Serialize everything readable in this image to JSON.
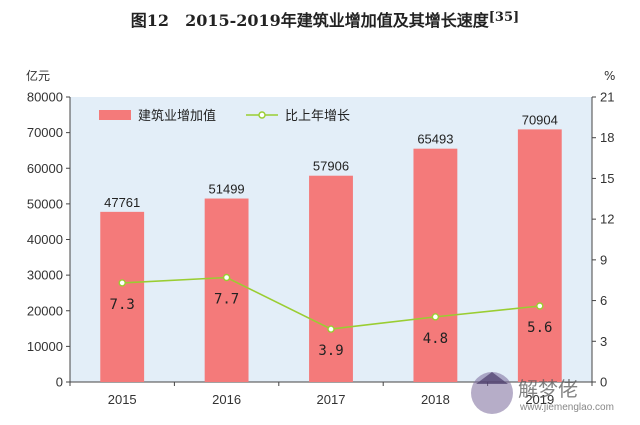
{
  "chart_data": {
    "type": "bar",
    "title": "图12　2015-2019年建筑业增加值及其增长速度",
    "title_ref": "[35]",
    "categories": [
      "2015",
      "2016",
      "2017",
      "2018",
      "2019"
    ],
    "series": [
      {
        "name": "建筑业增加值",
        "type": "bar",
        "axis": "left",
        "values": [
          47761,
          51499,
          57906,
          65493,
          70904
        ],
        "color": "#f47a7a"
      },
      {
        "name": "比上年增长",
        "type": "line",
        "axis": "right",
        "values": [
          7.3,
          7.7,
          3.9,
          4.8,
          5.6
        ],
        "color": "#9acd32"
      }
    ],
    "ylabel_left": "亿元",
    "ylabel_right": "%",
    "ylim_left": [
      0,
      80000
    ],
    "yticks_left": [
      0,
      10000,
      20000,
      30000,
      40000,
      50000,
      60000,
      70000,
      80000
    ],
    "ylim_right": [
      0,
      21
    ],
    "yticks_right": [
      0,
      3,
      6,
      9,
      12,
      15,
      18,
      21
    ],
    "legend_position": "top-left",
    "grid": false,
    "watermark": {
      "name": "解梦佬",
      "url": "www.jiemenglao.com"
    }
  }
}
